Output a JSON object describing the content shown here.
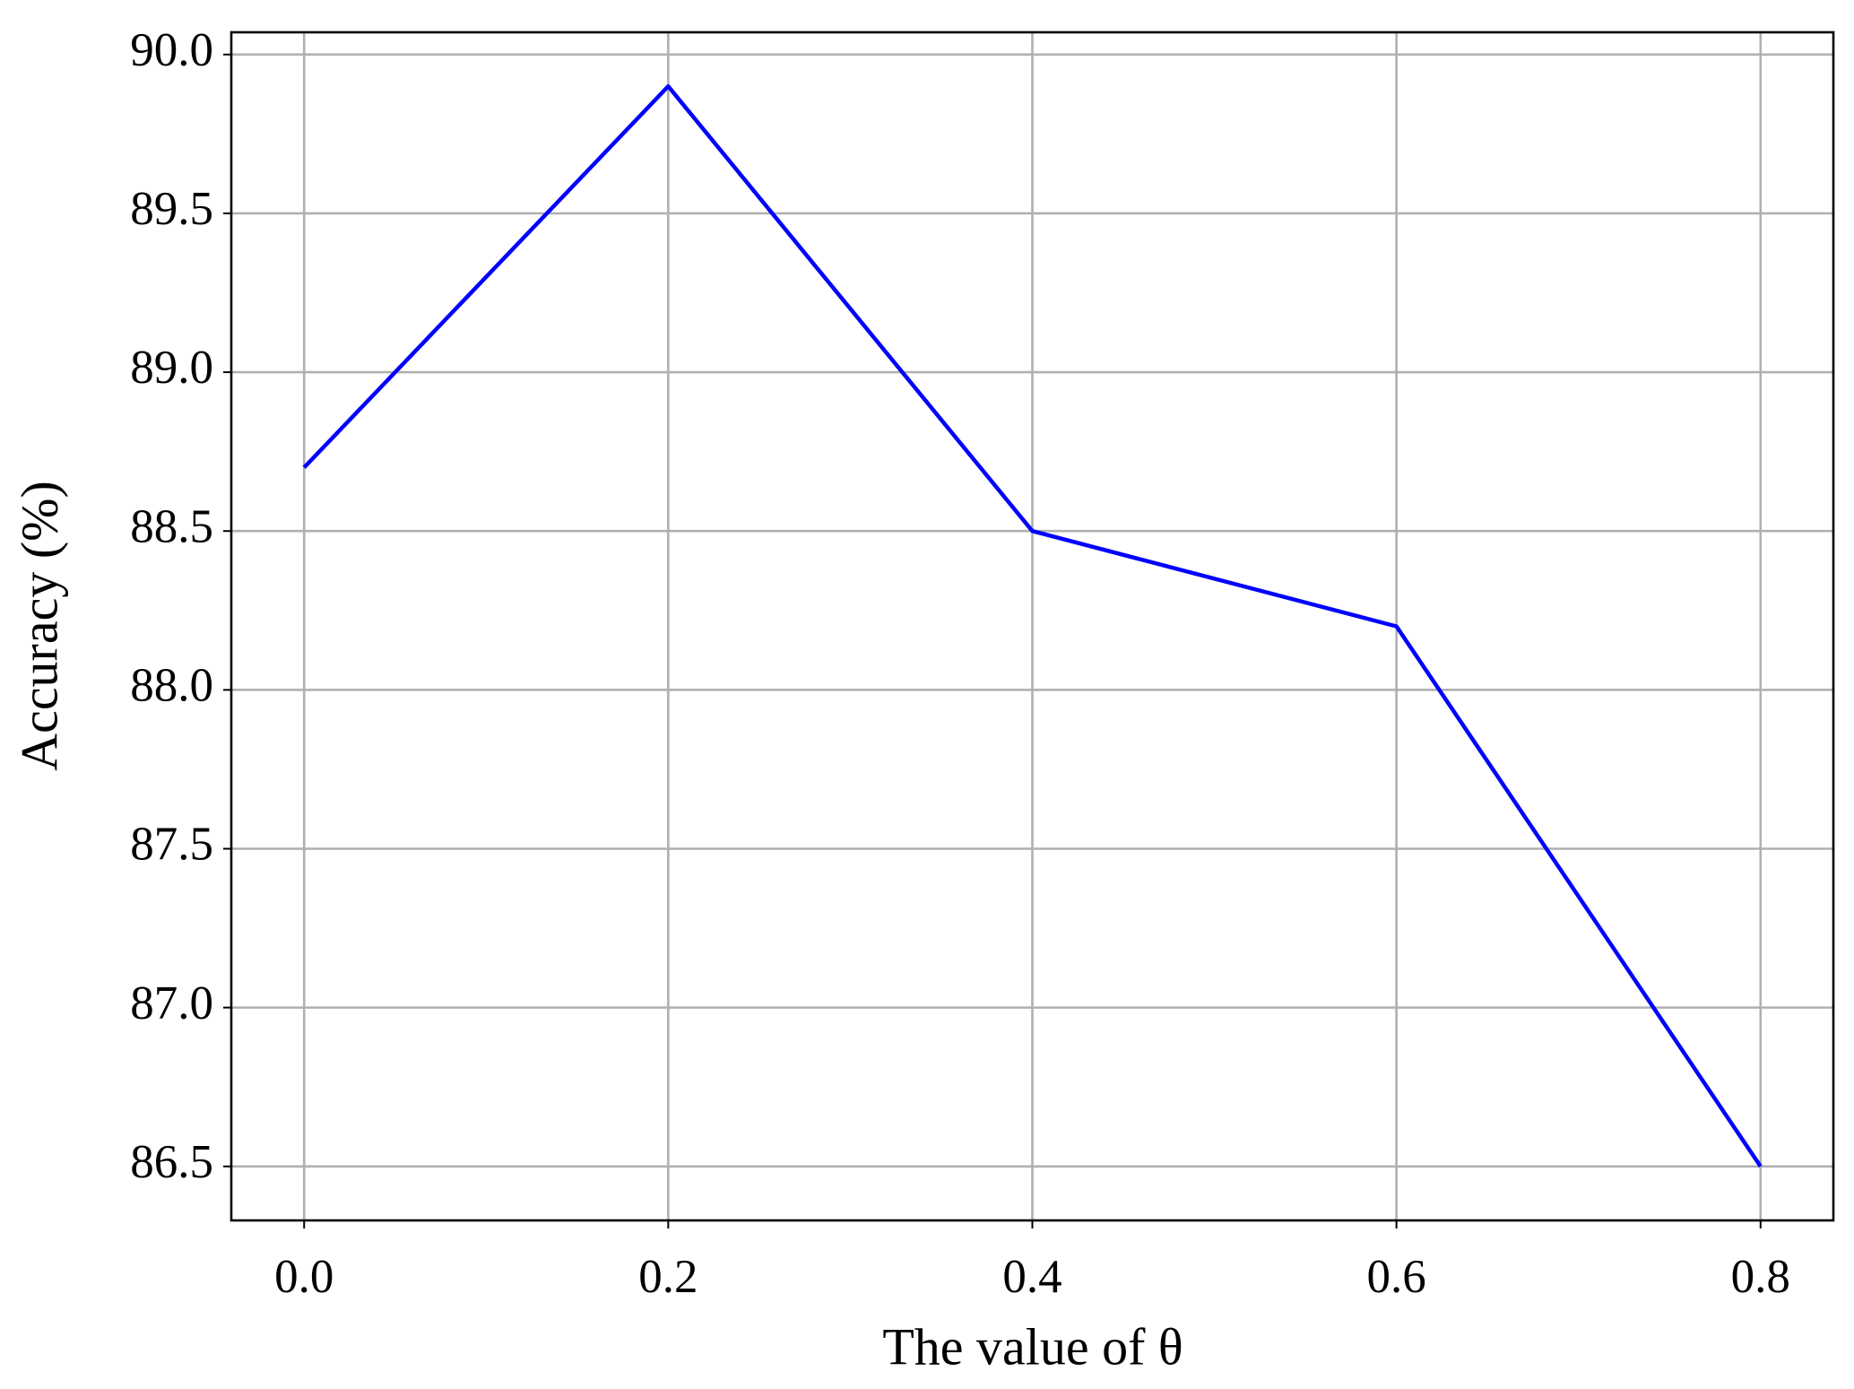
{
  "chart_data": {
    "type": "line",
    "x_label": "The value of θ",
    "y_label": "Accuracy (%)",
    "x": [
      0,
      0.2,
      0.4,
      0.6,
      0.8
    ],
    "series": [
      {
        "name": "Accuracy",
        "color": "#0000ff",
        "values": [
          88.7,
          89.9,
          88.5,
          88.2,
          86.5
        ]
      }
    ],
    "xlim": [
      -0.04,
      0.84
    ],
    "ylim": [
      86.33,
      90.07
    ],
    "xticks": [
      {
        "value": 0,
        "label": "0.0"
      },
      0.2,
      0.4,
      0.6,
      0.8
    ],
    "yticks": [
      86.5,
      {
        "value": 87,
        "label": "87.0"
      },
      87.5,
      {
        "value": 88,
        "label": "88.0"
      },
      88.5,
      {
        "value": 89,
        "label": "89.0"
      },
      89.5,
      {
        "value": 90,
        "label": "90.0"
      }
    ],
    "grid": true
  }
}
